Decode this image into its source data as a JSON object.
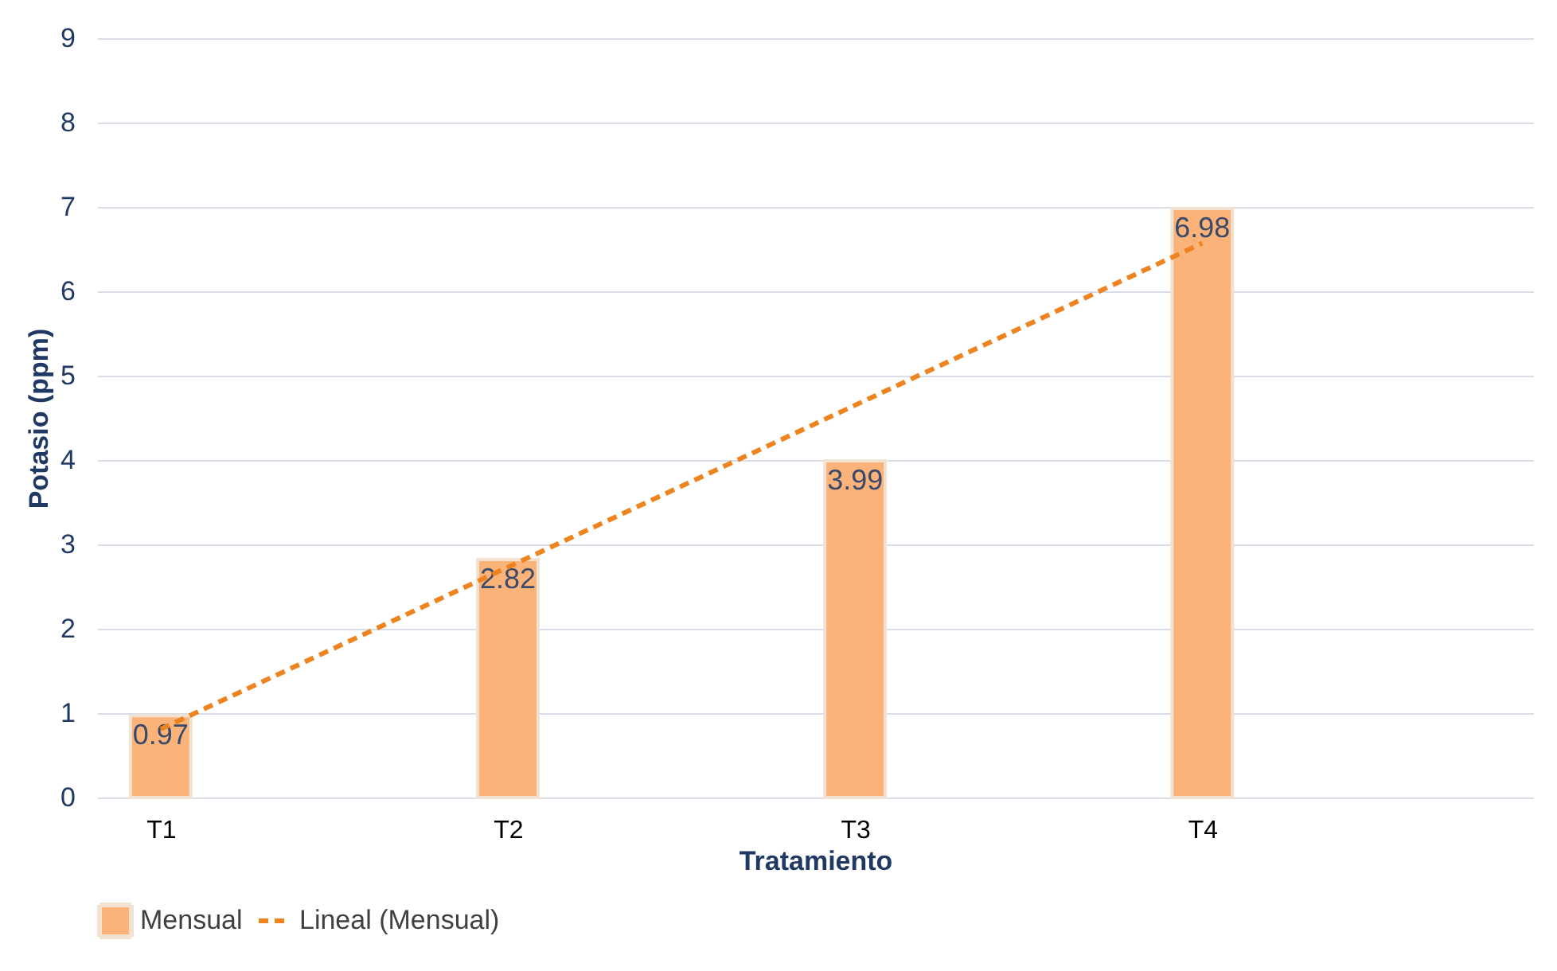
{
  "chart_data": {
    "type": "bar",
    "xlabel": "Tratamiento",
    "ylabel": "Potasio (ppm)",
    "categories": [
      "T1",
      "T2",
      "T3",
      "T4"
    ],
    "ylim": [
      0,
      9
    ],
    "yticks": [
      0,
      1,
      2,
      3,
      4,
      5,
      6,
      7,
      8,
      9
    ],
    "grid": "y",
    "legend": "bottom",
    "series": [
      {
        "name": "Mensual",
        "color": "#fbb37a",
        "values": [
          0.97,
          2.82,
          3.99,
          6.98
        ],
        "data_labels": true
      },
      {
        "name": "Lineal (Mensual)",
        "type": "line",
        "color": "#ee8420",
        "line_style": "dashed",
        "values": [
          0.81,
          2.73,
          4.65,
          6.57
        ]
      }
    ]
  }
}
